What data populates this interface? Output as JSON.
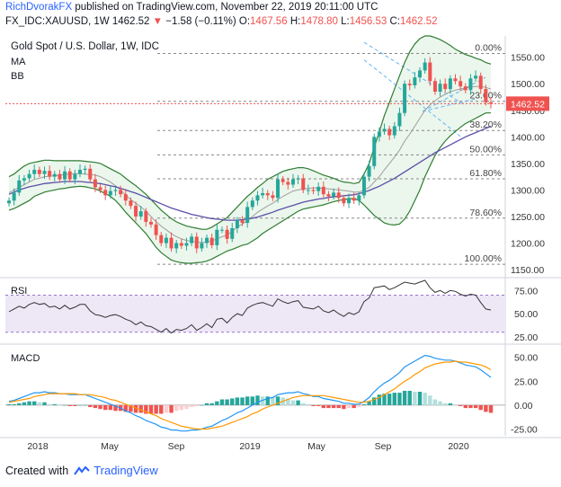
{
  "header": {
    "author": "RichDvorakFX",
    "published_text": " published on TradingView.com, November 22, 2019 20:11:00 UTC",
    "symbol": "FX_IDC:XAUUSD, 1W",
    "last": "1462.52",
    "change": "−1.58 (−0.11%)",
    "o_label": "O:",
    "o_val": "1467.56",
    "h_label": "H:",
    "h_val": "1478.80",
    "l_label": "L:",
    "l_val": "1456.53",
    "c_label": "C:",
    "c_val": "1462.52"
  },
  "footer": {
    "created_with": "Created with",
    "brand": "TradingView"
  },
  "colors": {
    "up": "#26a69a",
    "down": "#ef5350",
    "ma": "#9e9e9e",
    "bb": "#2e7d32",
    "bb_fill": "#e8f5e9",
    "ma_long": "#5c4fa8",
    "fib": "#888888",
    "channel": "#64b5f6",
    "rsi_band": "#ede7f6",
    "rsi_line": "#333333",
    "macd": "#2196f3",
    "signal": "#ff9800",
    "hist_up": "#26a69a",
    "hist_down": "#ef5350",
    "price_label_bg": "#ef5350"
  },
  "chart_data": [
    {
      "type": "candlestick",
      "title": "Gold Spot / U.S. Dollar, 1W, IDC",
      "indicators_legend": [
        "MA",
        "BB"
      ],
      "x_ticks": [
        "2018",
        "May",
        "Sep",
        "2019",
        "May",
        "Sep",
        "2020"
      ],
      "y_ticks": [
        1150,
        1200,
        1250,
        1300,
        1350,
        1400,
        1450,
        1500,
        1550
      ],
      "ylim": [
        1140,
        1590
      ],
      "last_price_label": "1462.52",
      "fib_levels": [
        {
          "label": "0.00%",
          "value": 1557
        },
        {
          "label": "23.60%",
          "value": 1467
        },
        {
          "label": "38.20%",
          "value": 1412
        },
        {
          "label": "50.00%",
          "value": 1366
        },
        {
          "label": "61.80%",
          "value": 1321
        },
        {
          "label": "78.60%",
          "value": 1247
        },
        {
          "label": "100.00%",
          "value": 1160
        }
      ],
      "close": [
        1280,
        1295,
        1318,
        1322,
        1330,
        1338,
        1330,
        1336,
        1325,
        1330,
        1320,
        1335,
        1320,
        1330,
        1338,
        1340,
        1320,
        1305,
        1300,
        1290,
        1298,
        1300,
        1292,
        1280,
        1270,
        1250,
        1260,
        1240,
        1235,
        1215,
        1200,
        1210,
        1190,
        1200,
        1195,
        1200,
        1212,
        1190,
        1200,
        1210,
        1196,
        1225,
        1225,
        1208,
        1228,
        1243,
        1238,
        1268,
        1280,
        1290,
        1294,
        1290,
        1285,
        1320,
        1315,
        1310,
        1320,
        1322,
        1300,
        1300,
        1298,
        1306,
        1292,
        1288,
        1295,
        1285,
        1275,
        1285,
        1280,
        1290,
        1325,
        1345,
        1400,
        1410,
        1415,
        1403,
        1420,
        1445,
        1500,
        1497,
        1512,
        1525,
        1540,
        1505,
        1485,
        1500,
        1490,
        1510,
        1505,
        1495,
        1488,
        1510,
        1515,
        1490,
        1465,
        1462.52
      ],
      "ma20": [
        1295,
        1300,
        1305,
        1310,
        1315,
        1320,
        1322,
        1325,
        1326,
        1327,
        1328,
        1329,
        1330,
        1331,
        1331,
        1330,
        1329,
        1328,
        1325,
        1320,
        1315,
        1308,
        1300,
        1290,
        1282,
        1275,
        1268,
        1260,
        1250,
        1240,
        1232,
        1225,
        1218,
        1212,
        1208,
        1205,
        1203,
        1202,
        1201,
        1202,
        1204,
        1208,
        1212,
        1215,
        1222,
        1230,
        1236,
        1242,
        1250,
        1258,
        1264,
        1270,
        1275,
        1282,
        1288,
        1293,
        1298,
        1300,
        1302,
        1303,
        1304,
        1304,
        1303,
        1302,
        1301,
        1300,
        1299,
        1298,
        1296,
        1296,
        1300,
        1305,
        1315,
        1325,
        1338,
        1350,
        1362,
        1375,
        1392,
        1405,
        1420,
        1435,
        1450,
        1460,
        1468,
        1475,
        1480,
        1485,
        1488,
        1490,
        1492,
        1494,
        1495,
        1495,
        1493,
        1490
      ],
      "bb_upper": [
        1325,
        1330,
        1338,
        1345,
        1350,
        1352,
        1354,
        1356,
        1356,
        1355,
        1355,
        1355,
        1355,
        1355,
        1355,
        1354,
        1353,
        1352,
        1350,
        1345,
        1340,
        1335,
        1330,
        1322,
        1315,
        1308,
        1300,
        1292,
        1282,
        1272,
        1262,
        1254,
        1246,
        1240,
        1236,
        1232,
        1230,
        1228,
        1226,
        1226,
        1230,
        1236,
        1242,
        1248,
        1258,
        1268,
        1278,
        1288,
        1296,
        1305,
        1312,
        1320,
        1325,
        1330,
        1335,
        1338,
        1340,
        1342,
        1342,
        1340,
        1336,
        1332,
        1328,
        1325,
        1322,
        1318,
        1315,
        1314,
        1312,
        1314,
        1330,
        1350,
        1380,
        1410,
        1440,
        1465,
        1490,
        1515,
        1540,
        1560,
        1575,
        1585,
        1590,
        1590,
        1587,
        1583,
        1578,
        1572,
        1565,
        1560,
        1555,
        1552,
        1548,
        1545,
        1540,
        1537
      ],
      "bb_lower": [
        1262,
        1265,
        1270,
        1275,
        1280,
        1288,
        1292,
        1296,
        1298,
        1300,
        1302,
        1303,
        1305,
        1306,
        1307,
        1306,
        1304,
        1302,
        1298,
        1293,
        1288,
        1280,
        1270,
        1258,
        1248,
        1238,
        1228,
        1218,
        1205,
        1192,
        1182,
        1175,
        1168,
        1165,
        1163,
        1162,
        1162,
        1163,
        1164,
        1166,
        1170,
        1175,
        1180,
        1185,
        1188,
        1192,
        1196,
        1198,
        1204,
        1210,
        1218,
        1224,
        1230,
        1236,
        1242,
        1248,
        1254,
        1260,
        1264,
        1266,
        1268,
        1270,
        1272,
        1275,
        1278,
        1280,
        1282,
        1283,
        1284,
        1280,
        1272,
        1262,
        1252,
        1245,
        1238,
        1235,
        1234,
        1236,
        1245,
        1260,
        1280,
        1300,
        1325,
        1345,
        1365,
        1380,
        1392,
        1402,
        1410,
        1418,
        1425,
        1430,
        1435,
        1440,
        1445,
        1445
      ],
      "ma_long": [
        1292,
        1296,
        1300,
        1303,
        1306,
        1308,
        1310,
        1312,
        1313,
        1314,
        1315,
        1316,
        1316,
        1316,
        1316,
        1315,
        1314,
        1313,
        1312,
        1310,
        1308,
        1306,
        1303,
        1300,
        1297,
        1294,
        1290,
        1286,
        1282,
        1278,
        1274,
        1270,
        1266,
        1263,
        1260,
        1257,
        1254,
        1252,
        1250,
        1248,
        1246,
        1245,
        1244,
        1243,
        1243,
        1243,
        1244,
        1245,
        1247,
        1249,
        1252,
        1255,
        1258,
        1262,
        1265,
        1268,
        1271,
        1274,
        1277,
        1279,
        1281,
        1283,
        1284,
        1286,
        1287,
        1288,
        1289,
        1290,
        1291,
        1293,
        1296,
        1299,
        1303,
        1307,
        1312,
        1317,
        1322,
        1328,
        1334,
        1340,
        1346,
        1352,
        1358,
        1364,
        1370,
        1375,
        1380,
        1385,
        1390,
        1395,
        1400,
        1404,
        1408,
        1412,
        1416,
        1420
      ]
    },
    {
      "type": "line",
      "title": "RSI",
      "y_ticks": [
        25,
        50,
        75
      ],
      "ylim": [
        20,
        85
      ],
      "band": [
        30,
        70
      ],
      "values": [
        52,
        55,
        58,
        56,
        60,
        62,
        60,
        61,
        57,
        58,
        55,
        59,
        55,
        57,
        60,
        60,
        53,
        49,
        48,
        46,
        48,
        49,
        47,
        44,
        42,
        38,
        41,
        37,
        36,
        33,
        30,
        34,
        29,
        33,
        32,
        34,
        38,
        32,
        35,
        39,
        35,
        44,
        45,
        40,
        46,
        50,
        48,
        56,
        59,
        61,
        62,
        60,
        58,
        66,
        63,
        61,
        63,
        64,
        57,
        56,
        55,
        58,
        53,
        51,
        54,
        50,
        47,
        51,
        49,
        52,
        63,
        67,
        78,
        79,
        80,
        76,
        78,
        81,
        84,
        83,
        82,
        84,
        86,
        78,
        73,
        75,
        72,
        75,
        74,
        71,
        69,
        71,
        70,
        62,
        55,
        54
      ]
    },
    {
      "type": "bar+line",
      "title": "MACD",
      "y_ticks": [
        -25,
        0,
        25,
        50
      ],
      "ylim": [
        -32,
        60
      ],
      "x_ticks": [
        "2018",
        "May",
        "Sep",
        "2019",
        "May",
        "Sep",
        "2020"
      ],
      "macd": [
        4,
        5,
        7,
        9,
        11,
        13,
        13,
        14,
        13,
        13,
        12,
        12,
        11,
        11,
        11,
        11,
        9,
        7,
        5,
        3,
        1,
        -1,
        -3,
        -6,
        -8,
        -11,
        -13,
        -16,
        -18,
        -20,
        -23,
        -24,
        -26,
        -26,
        -27,
        -27,
        -26,
        -26,
        -25,
        -23,
        -22,
        -19,
        -16,
        -14,
        -11,
        -8,
        -6,
        -3,
        0,
        3,
        5,
        7,
        8,
        11,
        12,
        13,
        13,
        14,
        12,
        11,
        9,
        9,
        7,
        6,
        5,
        4,
        2,
        2,
        1,
        1,
        4,
        8,
        14,
        19,
        23,
        26,
        30,
        34,
        40,
        43,
        46,
        49,
        52,
        51,
        49,
        48,
        47,
        47,
        46,
        44,
        42,
        41,
        40,
        37,
        33,
        29
      ],
      "signal": [
        3,
        4,
        5,
        6,
        7,
        9,
        10,
        11,
        12,
        12,
        12,
        12,
        12,
        12,
        11,
        11,
        11,
        10,
        9,
        8,
        6,
        5,
        3,
        1,
        -1,
        -3,
        -5,
        -7,
        -9,
        -11,
        -14,
        -16,
        -18,
        -20,
        -22,
        -23,
        -24,
        -25,
        -25,
        -25,
        -24,
        -23,
        -22,
        -20,
        -18,
        -16,
        -14,
        -12,
        -9,
        -7,
        -4,
        -2,
        0,
        2,
        4,
        6,
        8,
        9,
        10,
        10,
        10,
        10,
        10,
        9,
        8,
        7,
        6,
        5,
        4,
        3,
        3,
        4,
        6,
        8,
        11,
        14,
        17,
        21,
        25,
        28,
        32,
        35,
        39,
        41,
        43,
        44,
        45,
        45,
        46,
        45,
        45,
        44,
        43,
        42,
        40,
        37
      ],
      "histogram": [
        1,
        1,
        2,
        3,
        4,
        4,
        3,
        3,
        1,
        1,
        0,
        0,
        -1,
        -1,
        0,
        0,
        -2,
        -3,
        -4,
        -5,
        -5,
        -6,
        -6,
        -7,
        -7,
        -8,
        -8,
        -9,
        -9,
        -9,
        -9,
        -8,
        -8,
        -6,
        -5,
        -4,
        -2,
        -1,
        0,
        2,
        2,
        4,
        6,
        6,
        7,
        8,
        8,
        9,
        9,
        10,
        9,
        9,
        8,
        9,
        8,
        7,
        5,
        5,
        2,
        1,
        -1,
        -1,
        -3,
        -3,
        -3,
        -3,
        -4,
        -3,
        -3,
        -2,
        1,
        4,
        8,
        11,
        12,
        12,
        13,
        13,
        15,
        15,
        14,
        14,
        13,
        10,
        6,
        4,
        2,
        2,
        0,
        -1,
        -3,
        -3,
        -3,
        -5,
        -7,
        -8
      ]
    }
  ]
}
